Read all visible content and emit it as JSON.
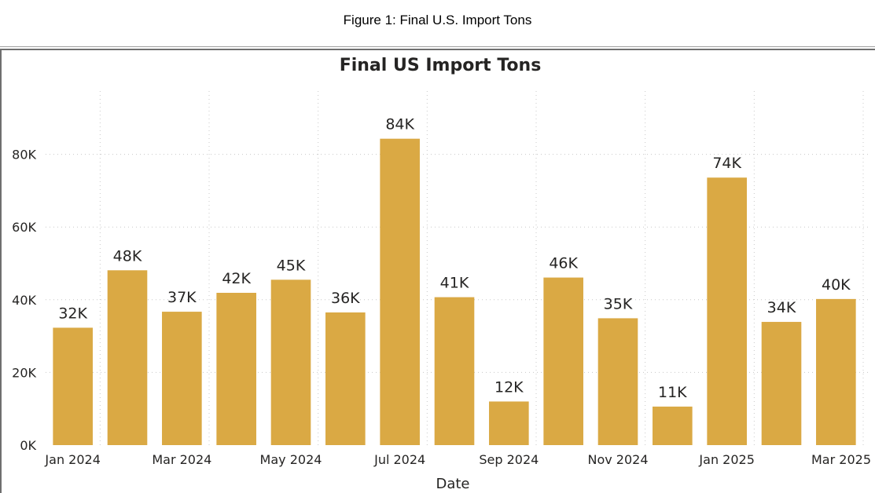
{
  "figure_caption": "Figure 1: Final U.S. Import Tons",
  "chart_data": {
    "type": "bar",
    "title": "Final US Import Tons",
    "xlabel": "Date",
    "ylabel": "",
    "categories": [
      "Jan 2024",
      "Feb 2024",
      "Mar 2024",
      "Apr 2024",
      "May 2024",
      "Jun 2024",
      "Jul 2024",
      "Aug 2024",
      "Sep 2024",
      "Oct 2024",
      "Nov 2024",
      "Dec 2024",
      "Jan 2025",
      "Feb 2025",
      "Mar 2025"
    ],
    "x_tick_labels": [
      "Jan 2024",
      "Mar 2024",
      "May 2024",
      "Jul 2024",
      "Sep 2024",
      "Nov 2024",
      "Jan 2025",
      "Mar 2025"
    ],
    "values": [
      32300,
      48100,
      36700,
      41900,
      45500,
      36500,
      84300,
      40700,
      12000,
      46100,
      34900,
      10600,
      73600,
      33900,
      40200
    ],
    "data_labels": [
      "32K",
      "48K",
      "37K",
      "42K",
      "45K",
      "36K",
      "84K",
      "41K",
      "12K",
      "46K",
      "35K",
      "11K",
      "74K",
      "34K",
      "40K"
    ],
    "y_ticks": [
      0,
      20000,
      40000,
      60000,
      80000
    ],
    "y_tick_labels": [
      "0K",
      "20K",
      "40K",
      "60K",
      "80K"
    ],
    "ylim": [
      0,
      100000
    ],
    "grid": true,
    "legend": "none",
    "bar_color": "#DAA944"
  }
}
